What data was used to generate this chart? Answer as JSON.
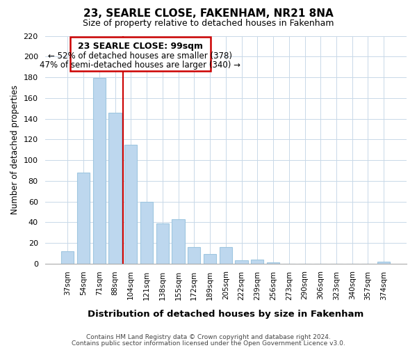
{
  "title": "23, SEARLE CLOSE, FAKENHAM, NR21 8NA",
  "subtitle": "Size of property relative to detached houses in Fakenham",
  "xlabel": "Distribution of detached houses by size in Fakenham",
  "ylabel": "Number of detached properties",
  "bar_labels": [
    "37sqm",
    "54sqm",
    "71sqm",
    "88sqm",
    "104sqm",
    "121sqm",
    "138sqm",
    "155sqm",
    "172sqm",
    "189sqm",
    "205sqm",
    "222sqm",
    "239sqm",
    "256sqm",
    "273sqm",
    "290sqm",
    "306sqm",
    "323sqm",
    "340sqm",
    "357sqm",
    "374sqm"
  ],
  "bar_values": [
    12,
    88,
    179,
    146,
    115,
    60,
    39,
    43,
    16,
    9,
    16,
    3,
    4,
    1,
    0,
    0,
    0,
    0,
    0,
    0,
    2
  ],
  "bar_color": "#bdd7ee",
  "bar_edge_color": "#9ec6e0",
  "reference_line_x": 3.5,
  "reference_line_color": "#cc0000",
  "ylim": [
    0,
    220
  ],
  "yticks": [
    0,
    20,
    40,
    60,
    80,
    100,
    120,
    140,
    160,
    180,
    200,
    220
  ],
  "annotation_title": "23 SEARLE CLOSE: 99sqm",
  "annotation_line1": "← 52% of detached houses are smaller (378)",
  "annotation_line2": "47% of semi-detached houses are larger (340) →",
  "annotation_box_color": "#ffffff",
  "annotation_box_edge_color": "#cc0000",
  "footer_line1": "Contains HM Land Registry data © Crown copyright and database right 2024.",
  "footer_line2": "Contains public sector information licensed under the Open Government Licence v3.0.",
  "background_color": "#ffffff",
  "grid_color": "#c8d8e8"
}
